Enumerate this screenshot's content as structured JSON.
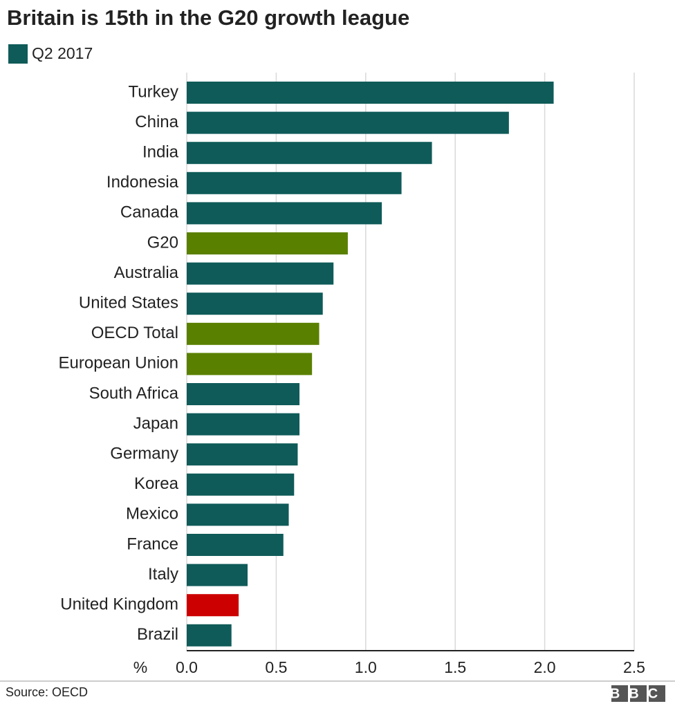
{
  "chart_data": {
    "type": "hbar",
    "title": "Britain is 15th in the G20 growth league",
    "x_label": "%",
    "source": "Source: OECD",
    "logo": "BBC",
    "categories": [
      "Turkey",
      "China",
      "India",
      "Indonesia",
      "Canada",
      "G20",
      "Australia",
      "United States",
      "OECD Total",
      "European Union",
      "South Africa",
      "Japan",
      "Germany",
      "Korea",
      "Mexico",
      "France",
      "Italy",
      "United Kingdom",
      "Brazil"
    ],
    "series": [
      {
        "name": "Q2 2017",
        "color": "#0f5b59",
        "values": [
          2.05,
          1.8,
          1.37,
          1.2,
          1.09,
          0.9,
          0.82,
          0.76,
          0.74,
          0.7,
          0.63,
          0.63,
          0.62,
          0.6,
          0.57,
          0.54,
          0.34,
          0.29,
          0.25
        ]
      }
    ],
    "bar_colors": [
      "#0f5b59",
      "#0f5b59",
      "#0f5b59",
      "#0f5b59",
      "#0f5b59",
      "#5a8000",
      "#0f5b59",
      "#0f5b59",
      "#5a8000",
      "#5a8000",
      "#0f5b59",
      "#0f5b59",
      "#0f5b59",
      "#0f5b59",
      "#0f5b59",
      "#0f5b59",
      "#0f5b59",
      "#cc0000",
      "#0f5b59"
    ],
    "xlim": [
      0,
      2.5
    ],
    "xticks": [
      {
        "value": 0,
        "label": "0.0"
      },
      0.5,
      {
        "value": 1,
        "label": "1.0"
      },
      1.5,
      {
        "value": 2,
        "label": "2.0"
      },
      2.5
    ],
    "grid": true
  }
}
